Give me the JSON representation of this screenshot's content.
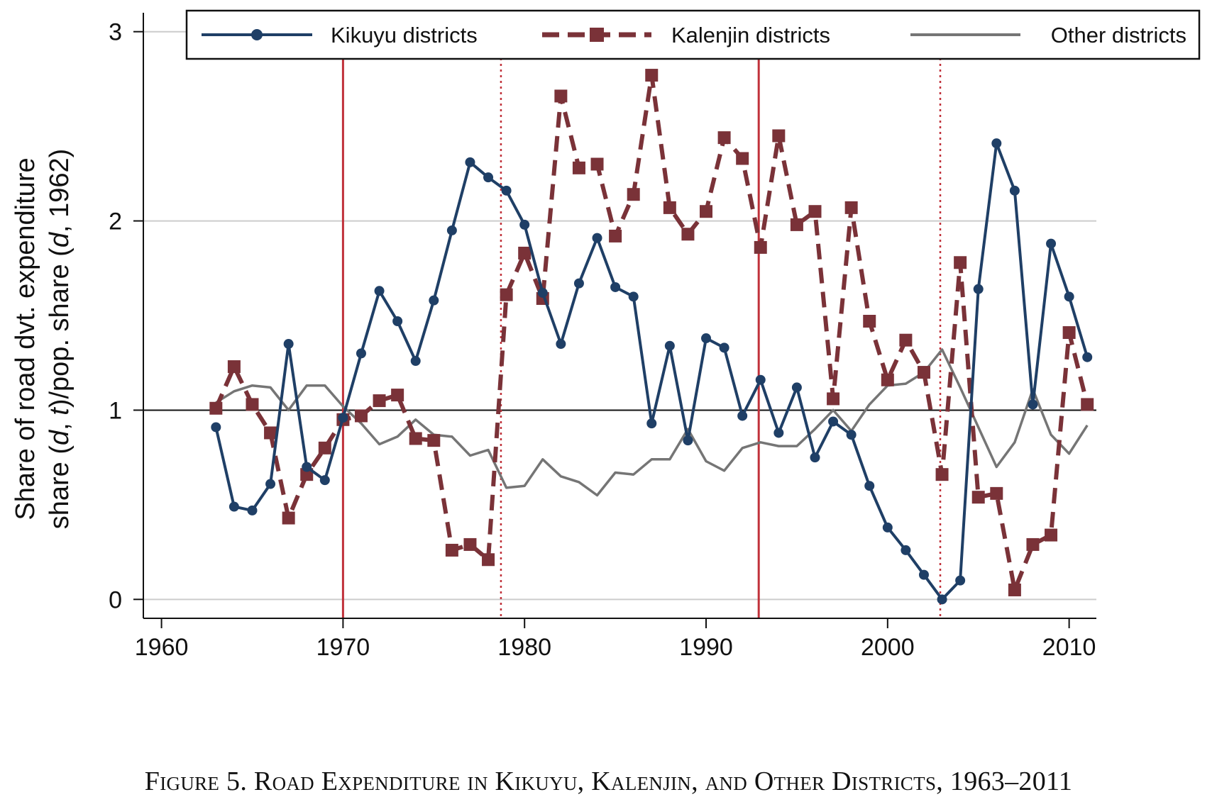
{
  "caption": "Figure 5. Road Expenditure in Kikuyu, Kalenjin, and Other Districts, 1963–2011",
  "chart_data": {
    "type": "line",
    "ylabel_line1": "Share of road dvt. expenditure",
    "ylabel_line2_parts": [
      "share (",
      "d",
      ", ",
      "t",
      ")/pop. share (",
      "d",
      ", 1962)"
    ],
    "xlim": [
      1959,
      2011.5
    ],
    "ylim": [
      -0.1,
      3.1
    ],
    "xticks": [
      1960,
      1970,
      1980,
      1990,
      2000,
      2010
    ],
    "yticks": [
      0,
      1,
      2,
      3
    ],
    "grid": true,
    "legend_position": "top",
    "reference_line_y": 1,
    "vlines_solid": [
      1970,
      1992.9
    ],
    "vlines_dotted": [
      1978.7,
      2002.9
    ],
    "colors": {
      "kikuyu": "#1f3f66",
      "kalenjin": "#7a3238",
      "other": "#757575",
      "vline": "#c0313a",
      "grid": "#cccccc"
    },
    "x": [
      1963,
      1964,
      1965,
      1966,
      1967,
      1968,
      1969,
      1970,
      1971,
      1972,
      1973,
      1974,
      1975,
      1976,
      1977,
      1978,
      1979,
      1980,
      1981,
      1982,
      1983,
      1984,
      1985,
      1986,
      1987,
      1988,
      1989,
      1990,
      1991,
      1992,
      1993,
      1994,
      1995,
      1996,
      1997,
      1998,
      1999,
      2000,
      2001,
      2002,
      2003,
      2004,
      2005,
      2006,
      2007,
      2008,
      2009,
      2010,
      2011
    ],
    "series": [
      {
        "name": "Kikuyu districts",
        "key": "kikuyu",
        "values": [
          0.91,
          0.49,
          0.47,
          0.61,
          1.35,
          0.7,
          0.63,
          0.96,
          1.3,
          1.63,
          1.47,
          1.26,
          1.58,
          1.95,
          2.31,
          2.23,
          2.16,
          1.98,
          1.62,
          1.35,
          1.67,
          1.91,
          1.65,
          1.6,
          0.93,
          1.34,
          0.84,
          1.38,
          1.33,
          0.97,
          1.16,
          0.88,
          1.12,
          0.75,
          0.94,
          0.87,
          0.6,
          0.38,
          0.26,
          0.13,
          0.0,
          0.1,
          1.64,
          2.41,
          2.16,
          1.03,
          1.88,
          1.6,
          1.28
        ]
      },
      {
        "name": "Kalenjin districts",
        "key": "kalenjin",
        "values": [
          1.01,
          1.23,
          1.03,
          0.88,
          0.43,
          0.66,
          0.8,
          0.95,
          0.97,
          1.05,
          1.08,
          0.85,
          0.84,
          0.26,
          0.29,
          0.21,
          1.61,
          1.83,
          1.59,
          2.66,
          2.28,
          2.3,
          1.92,
          2.14,
          2.77,
          2.07,
          1.93,
          2.05,
          2.44,
          2.33,
          1.86,
          2.45,
          1.98,
          2.05,
          1.06,
          2.07,
          1.47,
          1.16,
          1.37,
          1.2,
          0.66,
          1.78,
          0.54,
          0.56,
          0.05,
          0.29,
          0.34,
          1.41,
          1.03
        ]
      },
      {
        "name": "Other districts",
        "key": "other",
        "values": [
          1.04,
          1.1,
          1.13,
          1.12,
          1.0,
          1.13,
          1.13,
          1.02,
          0.93,
          0.82,
          0.86,
          0.95,
          0.87,
          0.86,
          0.76,
          0.79,
          0.59,
          0.6,
          0.74,
          0.65,
          0.62,
          0.55,
          0.67,
          0.66,
          0.74,
          0.74,
          0.9,
          0.73,
          0.68,
          0.8,
          0.83,
          0.81,
          0.81,
          0.9,
          1.0,
          0.89,
          1.03,
          1.13,
          1.14,
          1.2,
          1.32,
          1.12,
          0.91,
          0.7,
          0.83,
          1.11,
          0.87,
          0.77,
          0.92
        ]
      }
    ]
  }
}
